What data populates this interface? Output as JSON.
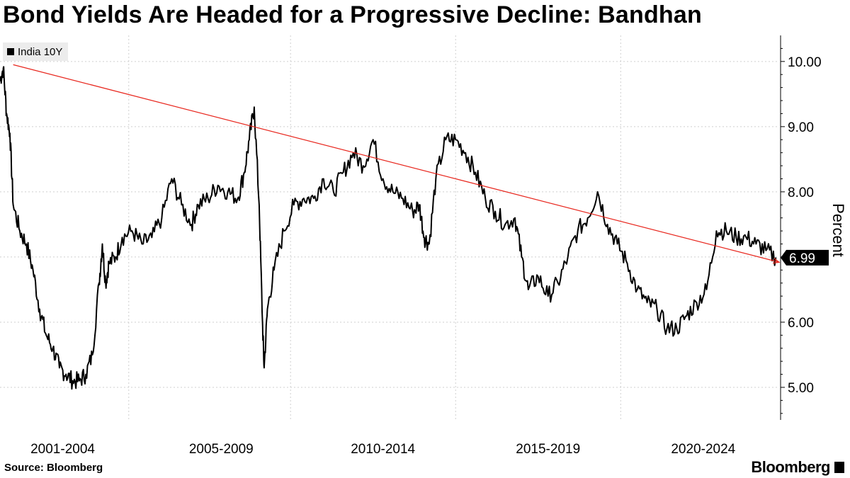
{
  "chart_data": {
    "type": "line",
    "title": "Bond Yields Are Headed for a Progressive Decline: Bandhan",
    "ylabel": "Percent",
    "xlabel": "",
    "ylim": [
      4.5,
      10.4
    ],
    "xlim": [
      2001.0,
      2024.6
    ],
    "yticks": [
      5.0,
      6.0,
      7.0,
      8.0,
      9.0,
      10.0
    ],
    "ytick_labels": [
      "5.00",
      "6.00",
      "7.00",
      "8.00",
      "9.00",
      "10.00"
    ],
    "xtick_labels": [
      "2001-2004",
      "2005-2009",
      "2010-2014",
      "2015-2019",
      "2020-2024"
    ],
    "xtick_centers": [
      2002.9,
      2007.7,
      2012.6,
      2017.6,
      2022.3
    ],
    "x_gridlines": [
      2004.9,
      2009.8,
      2014.8,
      2019.8
    ],
    "grid": true,
    "legend_position": "top-left",
    "series": [
      {
        "name": "India 10Y",
        "color": "#000000",
        "x": [
          2001.0,
          2001.1,
          2001.2,
          2001.3,
          2001.4,
          2001.6,
          2001.8,
          2002.0,
          2002.2,
          2002.4,
          2002.6,
          2002.8,
          2003.0,
          2003.2,
          2003.4,
          2003.6,
          2003.8,
          2004.0,
          2004.1,
          2004.2,
          2004.3,
          2004.5,
          2004.7,
          2005.0,
          2005.3,
          2005.6,
          2005.9,
          2006.2,
          2006.5,
          2006.8,
          2007.0,
          2007.3,
          2007.6,
          2007.9,
          2008.2,
          2008.4,
          2008.55,
          2008.7,
          2008.85,
          2008.95,
          2009.0,
          2009.1,
          2009.3,
          2009.6,
          2009.9,
          2010.2,
          2010.5,
          2010.8,
          2011.1,
          2011.4,
          2011.7,
          2012.0,
          2012.3,
          2012.6,
          2012.9,
          2013.2,
          2013.5,
          2013.7,
          2013.85,
          2014.0,
          2014.2,
          2014.5,
          2014.8,
          2015.1,
          2015.4,
          2015.7,
          2016.0,
          2016.3,
          2016.6,
          2016.8,
          2017.0,
          2017.3,
          2017.6,
          2017.9,
          2018.2,
          2018.5,
          2018.8,
          2019.1,
          2019.4,
          2019.7,
          2020.0,
          2020.3,
          2020.6,
          2020.9,
          2021.2,
          2021.5,
          2021.8,
          2022.1,
          2022.4,
          2022.7,
          2023.0,
          2023.3,
          2023.6,
          2023.9,
          2024.2,
          2024.5
        ],
        "values": [
          9.7,
          9.9,
          9.2,
          8.9,
          7.8,
          7.4,
          7.2,
          6.8,
          6.2,
          5.8,
          5.6,
          5.3,
          5.2,
          5.1,
          5.1,
          5.2,
          5.5,
          6.6,
          7.2,
          6.6,
          6.9,
          7.0,
          7.3,
          7.4,
          7.2,
          7.3,
          7.6,
          8.2,
          7.8,
          7.5,
          7.8,
          7.9,
          8.1,
          8.0,
          7.9,
          8.3,
          8.8,
          9.3,
          7.8,
          6.0,
          5.3,
          6.2,
          6.8,
          7.4,
          7.8,
          7.9,
          7.9,
          8.2,
          8.0,
          8.3,
          8.6,
          8.4,
          8.8,
          8.2,
          8.0,
          7.9,
          7.7,
          7.8,
          7.3,
          7.2,
          8.2,
          8.8,
          8.8,
          8.6,
          8.3,
          7.9,
          7.7,
          7.5,
          7.6,
          7.0,
          6.5,
          6.7,
          6.4,
          6.6,
          7.0,
          7.4,
          7.6,
          8.0,
          7.5,
          7.2,
          6.9,
          6.5,
          6.3,
          6.2,
          5.9,
          5.9,
          6.1,
          6.3,
          6.5,
          7.4,
          7.4,
          7.3,
          7.3,
          7.2,
          7.1,
          6.99
        ]
      }
    ],
    "trendline": {
      "color": "#e8271e",
      "x": [
        2001.4,
        2024.6
      ],
      "values": [
        9.95,
        6.92
      ]
    },
    "last_value": 6.99,
    "last_value_label": "6.99"
  },
  "footer": {
    "source": "Source: Bloomberg",
    "brand": "Bloomberg"
  }
}
